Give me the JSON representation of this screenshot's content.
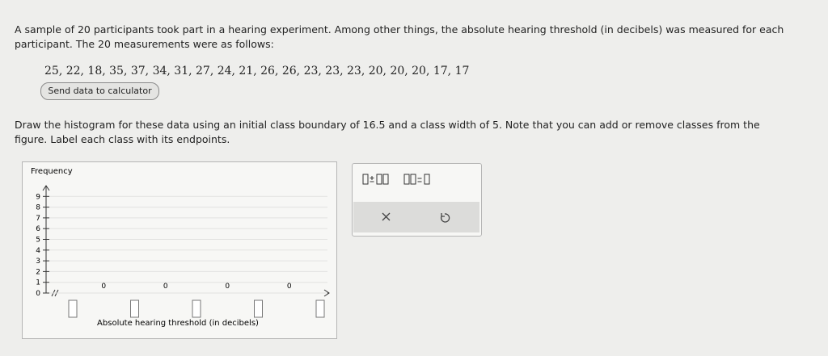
{
  "problem": {
    "intro": "A sample of 20 participants took part in a hearing experiment. Among other things, the absolute hearing threshold (in decibels) was measured for each participant. The 20 measurements were as follows:",
    "measurements": "25, 22, 18, 35, 37, 34, 31, 27, 24, 21, 26, 26, 23, 23, 23, 20, 20, 20, 17, 17",
    "button": "Send data to calculator",
    "instructions": "Draw the histogram for these data using an initial class boundary of 16.5 and a class width of 5. Note that you can add or remove classes from the figure. Label each class with its endpoints."
  },
  "graph": {
    "y_label": "Frequency",
    "x_label": "Absolute hearing threshold (in decibels)",
    "yticks": [
      0,
      1,
      2,
      3,
      4,
      5,
      6,
      7,
      8,
      9
    ],
    "class_frequencies": [
      0,
      0,
      0,
      0
    ]
  }
}
